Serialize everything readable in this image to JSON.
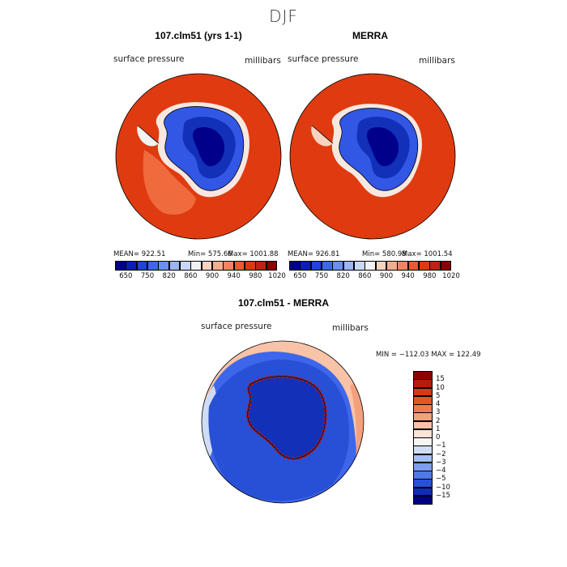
{
  "figure": {
    "season": "DJF",
    "difference_title": "107.clm51 - MERRA",
    "difference_stats": "MIN = −112.03 MAX = 122.49"
  },
  "panels": [
    {
      "title": "107.clm51 (yrs 1-1)",
      "variable": "surface pressure",
      "units": "millibars",
      "mean_label": "MEAN= 922.51",
      "min_label": "Min= 575.66",
      "max_label": "Max= 1001.88"
    },
    {
      "title": "MERRA",
      "variable": "surface pressure",
      "units": "millibars",
      "mean_label": "MEAN= 926.81",
      "min_label": "Min= 580.98",
      "max_label": "Max= 1001.54"
    },
    {
      "variable": "surface pressure",
      "units": "millibars"
    }
  ],
  "chart_data": [
    {
      "type": "heatmap",
      "title": "107.clm51 (yrs 1-1)",
      "projection": "polar stereographic, south pole",
      "variable": "surface pressure",
      "units": "millibars",
      "mean": 922.51,
      "min": 575.66,
      "max": 1001.88,
      "colorbar": {
        "orientation": "horizontal",
        "tick_labels": [
          "650",
          "750",
          "820",
          "860",
          "900",
          "940",
          "980",
          "1020"
        ],
        "colors": [
          "#00008b",
          "#0a1fb0",
          "#1f44d6",
          "#3d66ea",
          "#6b8ff0",
          "#9cb5f5",
          "#c8d8f8",
          "#f2f2f2",
          "#f8d3c0",
          "#f4ae8f",
          "#ee8560",
          "#e85a30",
          "#d93a12",
          "#b82510",
          "#8b0000"
        ]
      }
    },
    {
      "type": "heatmap",
      "title": "MERRA",
      "projection": "polar stereographic, south pole",
      "variable": "surface pressure",
      "units": "millibars",
      "mean": 926.81,
      "min": 580.98,
      "max": 1001.54,
      "colorbar": {
        "orientation": "horizontal",
        "tick_labels": [
          "650",
          "750",
          "820",
          "860",
          "900",
          "940",
          "980",
          "1020"
        ],
        "colors": [
          "#00008b",
          "#0a1fb0",
          "#1f44d6",
          "#3d66ea",
          "#6b8ff0",
          "#9cb5f5",
          "#c8d8f8",
          "#f2f2f2",
          "#f8d3c0",
          "#f4ae8f",
          "#ee8560",
          "#e85a30",
          "#d93a12",
          "#b82510",
          "#8b0000"
        ]
      }
    },
    {
      "type": "heatmap",
      "title": "107.clm51 - MERRA",
      "projection": "polar stereographic, south pole",
      "variable": "surface pressure",
      "units": "millibars",
      "min": -112.03,
      "max": 122.49,
      "colorbar": {
        "orientation": "vertical",
        "tick_labels": [
          "15",
          "10",
          "5",
          "4",
          "3",
          "2",
          "1",
          "0",
          "−1",
          "−2",
          "−3",
          "−4",
          "−5",
          "−10",
          "−15"
        ],
        "colors": [
          "#8b0000",
          "#b81a0c",
          "#d83812",
          "#e8551f",
          "#f07a4f",
          "#f5a07c",
          "#f8c3a7",
          "#fbe3d6",
          "#f5f5f5",
          "#cfdcf6",
          "#a6bff2",
          "#7d9eec",
          "#4f79e4",
          "#2850d6",
          "#0e2cb8",
          "#000080"
        ]
      }
    }
  ]
}
